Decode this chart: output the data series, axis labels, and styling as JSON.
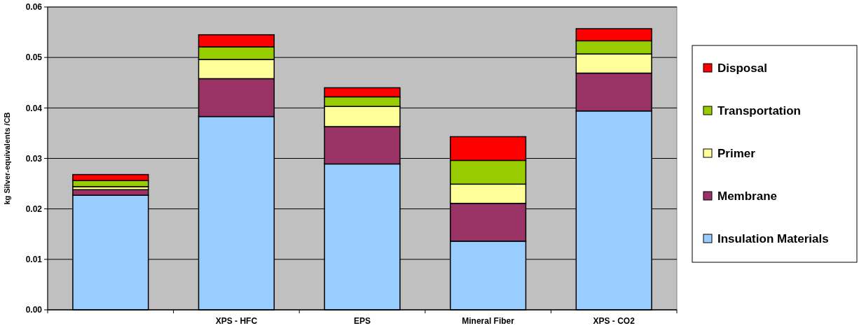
{
  "chart_data": {
    "type": "bar",
    "stacked": true,
    "ylabel": "kg Silver-equivalents /CB",
    "categories": [
      null,
      "XPS - HFC",
      "EPS",
      "Mineral Fiber",
      "XPS - CO2"
    ],
    "series": [
      {
        "name": "Insulation Materials",
        "color": "#99ccff",
        "values": [
          0.0227,
          0.0383,
          0.0289,
          0.0136,
          0.0394
        ]
      },
      {
        "name": "Membrane",
        "color": "#993366",
        "values": [
          0.0011,
          0.0075,
          0.0074,
          0.0075,
          0.0075
        ]
      },
      {
        "name": "Primer",
        "color": "#ffff99",
        "values": [
          0.0006,
          0.0038,
          0.004,
          0.0038,
          0.0038
        ]
      },
      {
        "name": "Transportation",
        "color": "#99cc00",
        "values": [
          0.0012,
          0.0025,
          0.0019,
          0.0047,
          0.0026
        ]
      },
      {
        "name": "Disposal",
        "color": "#ff0000",
        "values": [
          0.0012,
          0.0024,
          0.0018,
          0.0047,
          0.0024
        ]
      }
    ],
    "ylim": [
      0,
      0.06
    ],
    "yticks": [
      {
        "value": 0,
        "label": "0.00"
      },
      {
        "value": 0.01,
        "label": "0.01"
      },
      {
        "value": 0.02,
        "label": "0.02"
      },
      {
        "value": 0.03,
        "label": "0.03"
      },
      {
        "value": 0.04,
        "label": "0.04"
      },
      {
        "value": 0.05,
        "label": "0.05"
      },
      {
        "value": 0.06,
        "label": "0.06"
      }
    ],
    "grid": "y",
    "legend": "right"
  }
}
